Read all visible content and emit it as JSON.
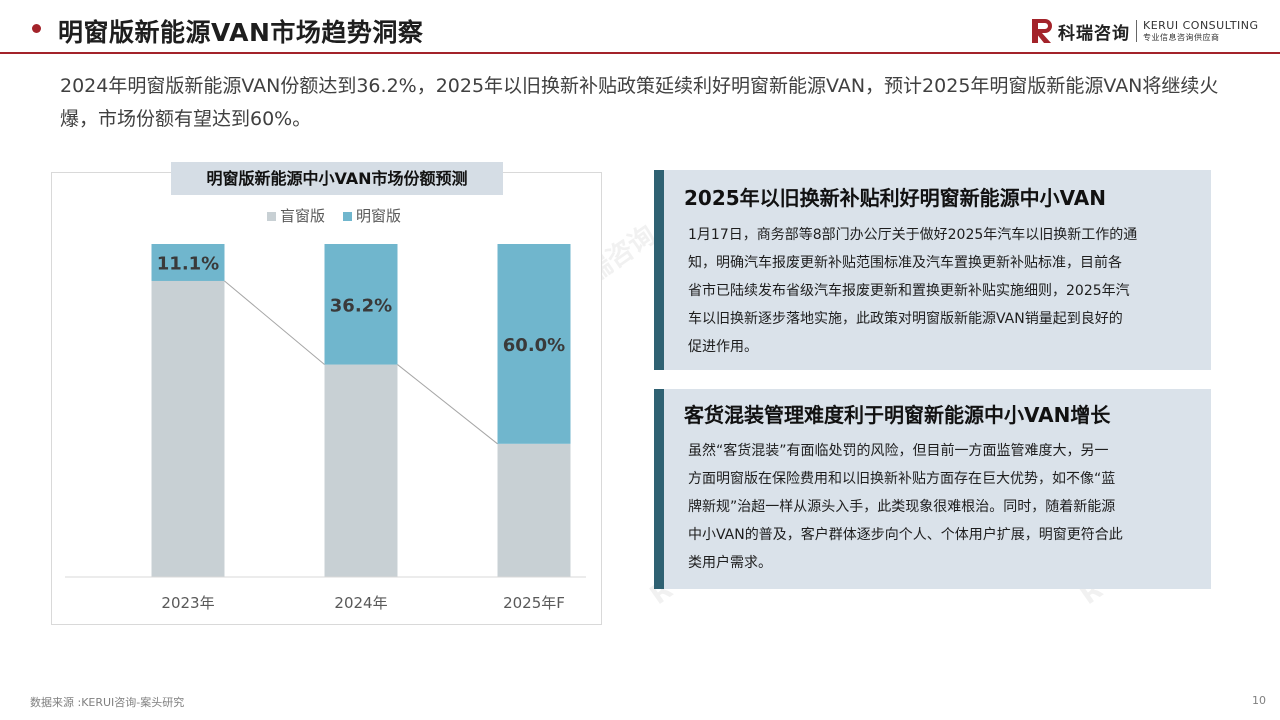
{
  "header": {
    "title": "明窗版新能源VAN市场趋势洞察"
  },
  "logo": {
    "cn": "科瑞咨询",
    "en_top": "KERUI CONSULTING",
    "en_bottom": "专业信息咨询供应商"
  },
  "intro": "2024年明窗版新能源VAN份额达到36.2%，2025年以旧换新补贴政策延续利好明窗新能源VAN，预计2025年明窗版新能源VAN将继续火爆，市场份额有望达到60%。",
  "colors": {
    "accent": "#a3232a",
    "blind": "#c8d0d4",
    "window": "#70b6cd",
    "card_bg": "#dae2ea",
    "card_bar": "#2f6172"
  },
  "chart_data": {
    "type": "bar",
    "stacked": true,
    "title": "明窗版新能源中小VAN市场份额预测",
    "categories": [
      "2023年",
      "2024年",
      "2025年F"
    ],
    "series": [
      {
        "name": "盲窗版",
        "values": [
          88.9,
          63.8,
          40.0
        ]
      },
      {
        "name": "明窗版",
        "values": [
          11.1,
          36.2,
          60.0
        ],
        "labels": [
          "11.1%",
          "36.2%",
          "60.0%"
        ]
      }
    ],
    "ylim": [
      0,
      100
    ],
    "legend": "top-left",
    "grid": false
  },
  "cards": [
    {
      "title": "2025年以旧换新补贴利好明窗新能源中小VAN",
      "lines": [
        "1月17日，商务部等8部门办公厅关于做好2025年汽车以旧换新工作的通",
        "知，明确汽车报废更新补贴范围标准及汽车置换更新补贴标准，目前各",
        "省市已陆续发布省级汽车报废更新和置换更新补贴实施细则，2025年汽",
        "车以旧换新逐步落地实施，此政策对明窗版新能源VAN销量起到良好的",
        "促进作用。"
      ]
    },
    {
      "title": "客货混装管理难度利于明窗新能源中小VAN增长",
      "lines": [
        "虽然“客货混装”有面临处罚的风险，但目前一方面监管难度大，另一",
        "方面明窗版在保险费用和以旧换新补贴方面存在巨大优势，如不像“蓝",
        "牌新规”治超一样从源头入手，此类现象很难根治。同时，随着新能源",
        "中小VAN的普及，客户群体逐步向个人、个体用户扩展，明窗更符合此",
        "类用户需求。"
      ]
    }
  ],
  "footer": {
    "source": "数据来源 :KERUI咨询-案头研究",
    "page": "10"
  }
}
